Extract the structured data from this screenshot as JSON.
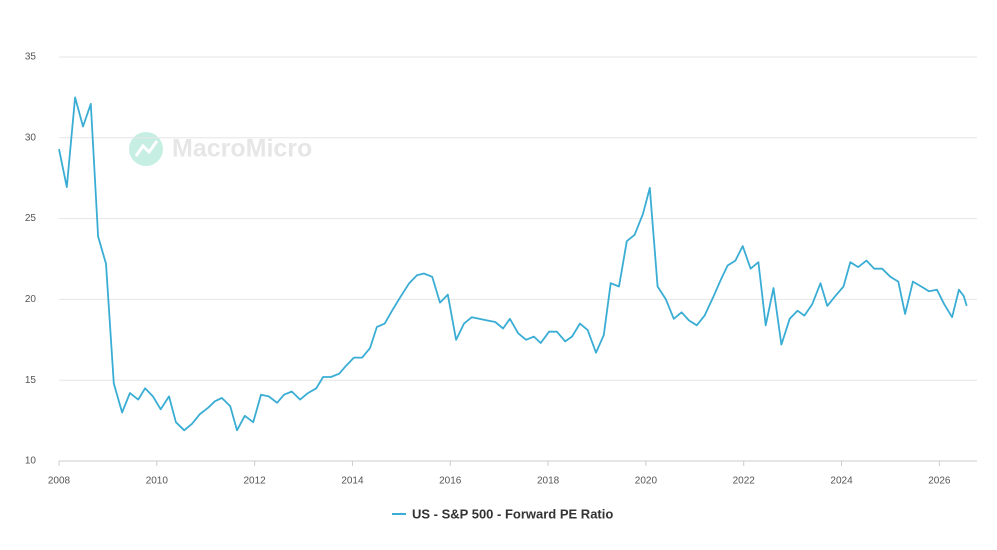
{
  "chart_data": {
    "type": "line",
    "watermark": "MacroMicro",
    "x": [
      2008.0,
      2008.16,
      2008.33,
      2008.49,
      2008.65,
      2008.8,
      2008.96,
      2009.12,
      2009.29,
      2009.45,
      2009.62,
      2009.76,
      2009.92,
      2010.08,
      2010.25,
      2010.39,
      2010.56,
      2010.72,
      2010.88,
      2011.05,
      2011.19,
      2011.33,
      2011.5,
      2011.64,
      2011.8,
      2011.97,
      2012.13,
      2012.29,
      2012.46,
      2012.6,
      2012.76,
      2012.93,
      2013.09,
      2013.26,
      2013.4,
      2013.56,
      2013.73,
      2013.87,
      2014.03,
      2014.2,
      2014.36,
      2014.5,
      2014.66,
      2014.83,
      2014.99,
      2015.16,
      2015.32,
      2015.46,
      2015.63,
      2015.79,
      2015.95,
      2016.12,
      2016.28,
      2016.44,
      2016.59,
      2016.75,
      2016.92,
      2017.08,
      2017.22,
      2017.39,
      2017.55,
      2017.71,
      2017.85,
      2018.02,
      2018.18,
      2018.35,
      2018.49,
      2018.65,
      2018.81,
      2018.98,
      2019.14,
      2019.28,
      2019.45,
      2019.61,
      2019.77,
      2019.94,
      2020.08,
      2020.24,
      2020.41,
      2020.57,
      2020.73,
      2020.88,
      2021.04,
      2021.2,
      2021.37,
      2021.53,
      2021.67,
      2021.83,
      2021.98,
      2022.14,
      2022.3,
      2022.45,
      2022.61,
      2022.77,
      2022.94,
      2023.1,
      2023.24,
      2023.4,
      2023.57,
      2023.71,
      2023.87,
      2024.04,
      2024.18,
      2024.34,
      2024.51,
      2024.67,
      2024.83,
      2025.0,
      2025.16,
      2025.3,
      2025.46,
      2025.63,
      2025.79,
      2025.95,
      2026.1,
      2026.26,
      2026.4,
      2026.5,
      2026.56
    ],
    "series": [
      {
        "name": "US - S&P 500 - Forward PE Ratio",
        "color": "#3aadd4",
        "values": [
          29.3,
          26.95,
          32.5,
          30.7,
          32.1,
          23.9,
          22.2,
          14.8,
          13.0,
          14.2,
          13.8,
          14.5,
          14.0,
          13.2,
          14.0,
          12.4,
          11.9,
          12.3,
          12.9,
          13.3,
          13.7,
          13.9,
          13.4,
          11.9,
          12.8,
          12.4,
          14.1,
          14.0,
          13.6,
          14.1,
          14.3,
          13.8,
          14.2,
          14.5,
          15.2,
          15.2,
          15.4,
          15.9,
          16.4,
          16.4,
          17.0,
          18.3,
          18.5,
          19.4,
          20.2,
          21.0,
          21.5,
          21.6,
          21.4,
          19.8,
          20.3,
          17.5,
          18.5,
          18.9,
          18.8,
          18.7,
          18.6,
          18.2,
          18.8,
          17.9,
          17.5,
          17.7,
          17.3,
          18.0,
          18.0,
          17.4,
          17.7,
          18.5,
          18.1,
          16.7,
          17.8,
          21.0,
          20.8,
          23.6,
          24.0,
          25.3,
          26.9,
          20.8,
          20.0,
          18.8,
          19.2,
          18.7,
          18.4,
          19.0,
          20.1,
          21.2,
          22.1,
          22.4,
          23.3,
          21.9,
          22.3,
          18.4,
          20.7,
          17.2,
          18.8,
          19.3,
          19.0,
          19.7,
          21.0,
          19.6,
          20.2,
          20.8,
          22.3,
          22.0,
          22.4,
          21.9,
          21.9,
          21.4,
          21.1,
          19.1,
          21.1,
          20.8,
          20.5,
          20.6,
          19.7,
          18.9,
          20.6,
          20.2,
          19.6
        ]
      }
    ],
    "xlim": [
      2008,
      2026.77
    ],
    "xticks": [
      2008,
      2010,
      2012,
      2014,
      2016,
      2018,
      2020,
      2022,
      2024,
      2026
    ],
    "ylim": [
      10,
      35
    ],
    "yticks": [
      10,
      15,
      20,
      25,
      30,
      35
    ],
    "grid": true,
    "legend": "bottom"
  }
}
